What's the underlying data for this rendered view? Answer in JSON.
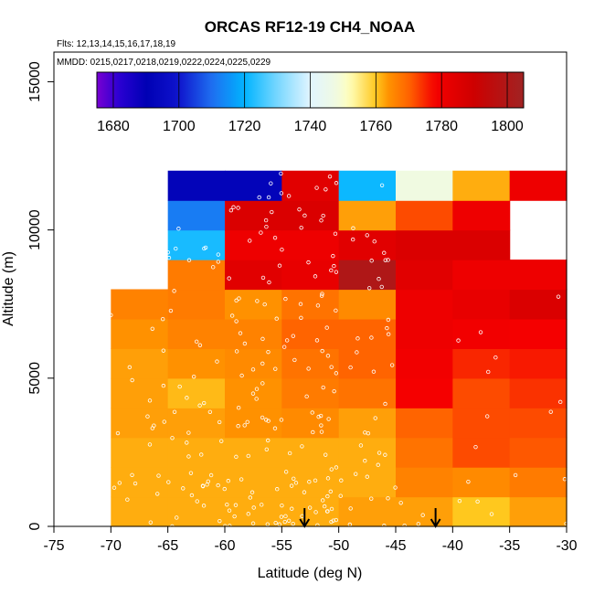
{
  "chart_data": {
    "type": "heatmap",
    "title": "ORCAS RF12-19 CH4_NOAA",
    "note_flights": "Flts: 12,13,14,15,16,17,18,19",
    "note_dates": "MMDD: 0215,0217,0218,0219,0222,0224,0225,0229",
    "xlabel": "Latitude (deg N)",
    "ylabel": "Altitude (m)",
    "xlim": [
      -75,
      -30
    ],
    "ylim": [
      0,
      16000
    ],
    "x_ticks": [
      -75,
      -70,
      -65,
      -60,
      -55,
      -50,
      -45,
      -40,
      -35,
      -30
    ],
    "x_tick_labels": [
      "-75",
      "-70",
      "-65",
      "-60",
      "-55",
      "-50",
      "-45",
      "-40",
      "-35",
      "-30"
    ],
    "y_ticks": [
      0,
      5000,
      10000,
      15000
    ],
    "y_tick_labels": [
      "0",
      "5000",
      "10000",
      "15000"
    ],
    "colorbar": {
      "range": [
        1675,
        1805
      ],
      "ticks": [
        1680,
        1700,
        1720,
        1740,
        1760,
        1780,
        1800
      ],
      "tick_labels": [
        "1680",
        "1700",
        "1720",
        "1740",
        "1760",
        "1780",
        "1800"
      ]
    },
    "bin_width_deg": 5,
    "bin_height_m": 1000,
    "arrows_lat": [
      -53,
      -41.5
    ],
    "cells": [
      [
        -70,
        0,
        1762
      ],
      [
        -65,
        0,
        1762
      ],
      [
        -60,
        0,
        1762
      ],
      [
        -55,
        0,
        1762
      ],
      [
        -50,
        0,
        1763
      ],
      [
        -45,
        0,
        1763
      ],
      [
        -40,
        0,
        1760
      ],
      [
        -35,
        0,
        1763
      ],
      [
        -70,
        1000,
        1762
      ],
      [
        -65,
        1000,
        1762
      ],
      [
        -60,
        1000,
        1762
      ],
      [
        -55,
        1000,
        1762
      ],
      [
        -50,
        1000,
        1762
      ],
      [
        -45,
        1000,
        1766
      ],
      [
        -40,
        1000,
        1765
      ],
      [
        -35,
        1000,
        1767
      ],
      [
        -70,
        2000,
        1762
      ],
      [
        -65,
        2000,
        1762
      ],
      [
        -60,
        2000,
        1762
      ],
      [
        -55,
        2000,
        1762
      ],
      [
        -50,
        2000,
        1762
      ],
      [
        -45,
        2000,
        1768
      ],
      [
        -40,
        2000,
        1772
      ],
      [
        -35,
        2000,
        1771
      ],
      [
        -70,
        3000,
        1763
      ],
      [
        -65,
        3000,
        1763
      ],
      [
        -60,
        3000,
        1764
      ],
      [
        -55,
        3000,
        1765
      ],
      [
        -50,
        3000,
        1763
      ],
      [
        -45,
        3000,
        1770
      ],
      [
        -40,
        3000,
        1772
      ],
      [
        -35,
        3000,
        1772
      ],
      [
        -70,
        4000,
        1763
      ],
      [
        -65,
        4000,
        1761
      ],
      [
        -60,
        4000,
        1764
      ],
      [
        -55,
        4000,
        1767
      ],
      [
        -50,
        4000,
        1768
      ],
      [
        -45,
        4000,
        1778
      ],
      [
        -40,
        4000,
        1772
      ],
      [
        -35,
        4000,
        1774
      ],
      [
        -70,
        5000,
        1763
      ],
      [
        -65,
        5000,
        1764
      ],
      [
        -60,
        5000,
        1765
      ],
      [
        -55,
        5000,
        1768
      ],
      [
        -50,
        5000,
        1770
      ],
      [
        -45,
        5000,
        1779
      ],
      [
        -40,
        5000,
        1775
      ],
      [
        -35,
        5000,
        1776
      ],
      [
        -70,
        6000,
        1764
      ],
      [
        -65,
        6000,
        1766
      ],
      [
        -60,
        6000,
        1766
      ],
      [
        -55,
        6000,
        1770
      ],
      [
        -50,
        6000,
        1770
      ],
      [
        -45,
        6000,
        1780
      ],
      [
        -40,
        6000,
        1779
      ],
      [
        -35,
        6000,
        1778
      ],
      [
        -70,
        7000,
        1766
      ],
      [
        -65,
        7000,
        1767
      ],
      [
        -60,
        7000,
        1764
      ],
      [
        -55,
        7000,
        1768
      ],
      [
        -50,
        7000,
        1765
      ],
      [
        -45,
        7000,
        1780
      ],
      [
        -40,
        7000,
        1782
      ],
      [
        -35,
        7000,
        1786
      ],
      [
        -65,
        8000,
        1767
      ],
      [
        -60,
        8000,
        1784
      ],
      [
        -55,
        8000,
        1782
      ],
      [
        -50,
        8000,
        1800
      ],
      [
        -45,
        8000,
        1784
      ],
      [
        -40,
        8000,
        1780
      ],
      [
        -35,
        8000,
        1780
      ],
      [
        -65,
        9000,
        1722
      ],
      [
        -60,
        9000,
        1780
      ],
      [
        -55,
        9000,
        1780
      ],
      [
        -50,
        9000,
        1784
      ],
      [
        -45,
        9000,
        1786
      ],
      [
        -40,
        9000,
        1786
      ],
      [
        -65,
        10000,
        1712
      ],
      [
        -60,
        10000,
        1786
      ],
      [
        -55,
        10000,
        1786
      ],
      [
        -50,
        10000,
        1763
      ],
      [
        -45,
        10000,
        1772
      ],
      [
        -40,
        10000,
        1780
      ],
      [
        -65,
        11000,
        1692
      ],
      [
        -60,
        11000,
        1692
      ],
      [
        -55,
        11000,
        1784
      ],
      [
        -50,
        11000,
        1721
      ],
      [
        -45,
        11000,
        1748
      ],
      [
        -40,
        11000,
        1762
      ],
      [
        -35,
        11000,
        1780
      ]
    ]
  }
}
